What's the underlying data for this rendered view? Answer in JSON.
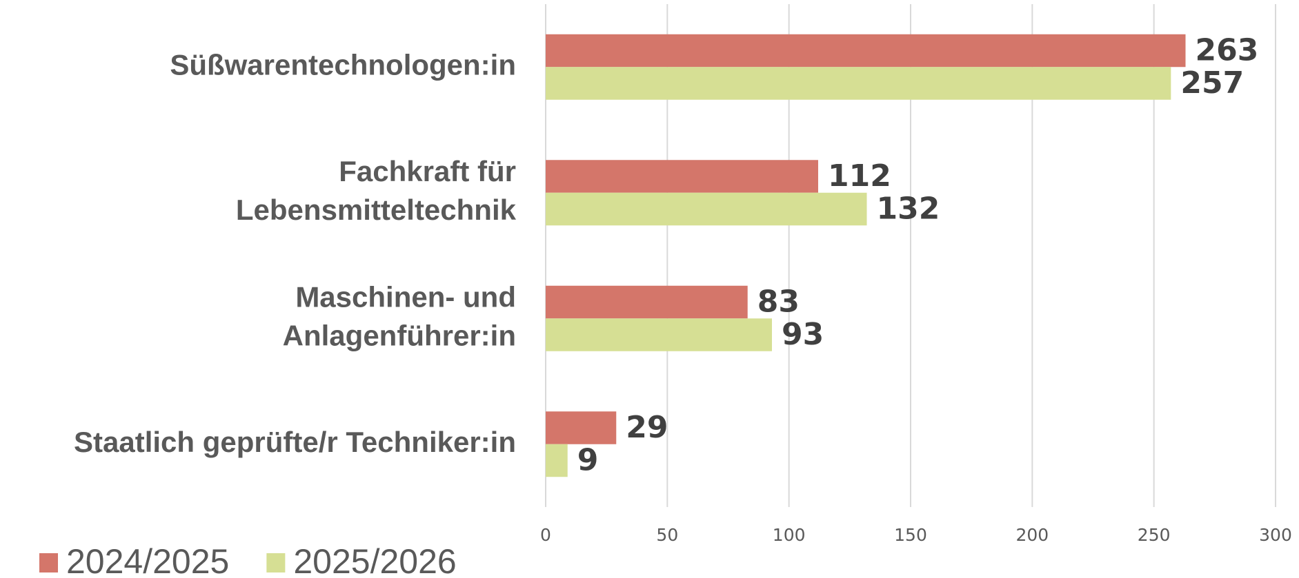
{
  "chart_data": {
    "type": "barh",
    "categories": [
      [
        "Süßwarentechnologen:in"
      ],
      [
        "Fachkraft für",
        "Lebensmitteltechnik"
      ],
      [
        "Maschinen- und",
        "Anlagenführer:in"
      ],
      [
        "Staatlich geprüfte/r Techniker:in"
      ]
    ],
    "series": [
      {
        "name": "2024/2025",
        "color": "#d4766a",
        "values": [
          263,
          112,
          83,
          29
        ]
      },
      {
        "name": "2025/2026",
        "color": "#d6df94",
        "values": [
          257,
          132,
          93,
          9
        ]
      }
    ],
    "xlim": [
      0,
      300
    ],
    "xticks": [
      0,
      50,
      100,
      150,
      200,
      250,
      300
    ],
    "grid": true,
    "legend": "bottom-left"
  }
}
